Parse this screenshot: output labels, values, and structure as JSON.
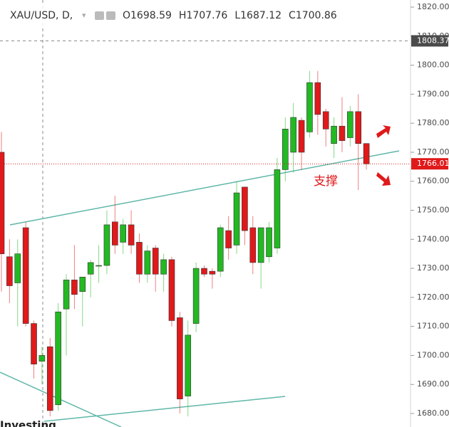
{
  "chart_data": {
    "type": "candlestick",
    "symbol": "XAU/USD, D,",
    "legend_values": [
      "O1698.59",
      "H1707.76",
      "L1687.12",
      "C1700.86"
    ],
    "annotation": "支撑",
    "watermark": "Investing",
    "up_color": "#22b922",
    "down_color": "#e0191b",
    "ylim": [
      1680,
      1820
    ],
    "yticks": [
      {
        "value": 1680,
        "label": "1680.00"
      },
      {
        "value": 1690,
        "label": "1690.00"
      },
      {
        "value": 1700,
        "label": "1700.00"
      },
      {
        "value": 1710,
        "label": "1710.00"
      },
      {
        "value": 1720,
        "label": "1720.00"
      },
      {
        "value": 1730,
        "label": "1730.00"
      },
      {
        "value": 1740,
        "label": "1740.00"
      },
      {
        "value": 1750,
        "label": "1750.00"
      },
      {
        "value": 1760,
        "label": "1760.00"
      },
      {
        "value": 1770,
        "label": "1770.00"
      },
      {
        "value": 1780,
        "label": "1780.00"
      },
      {
        "value": 1790,
        "label": "1790.00"
      },
      {
        "value": 1800,
        "label": "1800.00"
      },
      {
        "value": 1810,
        "label": "1810.00"
      },
      {
        "value": 1820,
        "label": "1820.00"
      }
    ],
    "crosshair_price": 1808.37,
    "last_price": 1766.01,
    "open": [
      1770,
      1734,
      1725,
      1744,
      1711,
      1698,
      1703,
      1683,
      1716,
      1726,
      1722,
      1728,
      1731,
      1731,
      1746,
      1739,
      1745,
      1739,
      1728,
      1737,
      1728,
      1733,
      1713,
      1686,
      1711,
      1730,
      1729,
      1729,
      1743,
      1738,
      1758,
      1744,
      1732,
      1734,
      1737,
      1764,
      1770,
      1781,
      1777,
      1794,
      1784,
      1773,
      1779,
      1775,
      1784,
      1773
    ],
    "high": [
      1777,
      1740,
      1740,
      1746,
      1712,
      1703,
      1706,
      1718,
      1728,
      1738,
      1727,
      1733,
      1738,
      1750,
      1755,
      1747,
      1750,
      1742,
      1738,
      1738,
      1735,
      1734,
      1715,
      1712,
      1732,
      1731,
      1730,
      1745,
      1748,
      1760,
      1758,
      1748,
      1744,
      1746,
      1768,
      1782,
      1787,
      1782,
      1798,
      1798,
      1785,
      1782,
      1789,
      1786,
      1790,
      1773
    ],
    "low": [
      1722,
      1718,
      1710,
      1710,
      1692,
      1690,
      1679,
      1681,
      1700,
      1716,
      1710,
      1720,
      1725,
      1728,
      1735,
      1735,
      1735,
      1725,
      1725,
      1722,
      1722,
      1710,
      1680,
      1679,
      1708,
      1727,
      1723,
      1727,
      1733,
      1735,
      1738,
      1728,
      1723,
      1732,
      1735,
      1760,
      1763,
      1764,
      1775,
      1776,
      1772,
      1768,
      1770,
      1772,
      1757,
      1764
    ],
    "close": [
      1735,
      1724,
      1735,
      1711,
      1697,
      1700,
      1681,
      1715,
      1726,
      1721,
      1727,
      1732,
      1731,
      1745,
      1738,
      1745,
      1738,
      1728,
      1736,
      1728,
      1733,
      1712,
      1685,
      1707,
      1730,
      1728,
      1728,
      1744,
      1737,
      1756,
      1743,
      1732,
      1744,
      1744,
      1764,
      1778,
      1782,
      1770,
      1794,
      1783,
      1778,
      1779,
      1774,
      1784,
      1773,
      1766
    ]
  }
}
